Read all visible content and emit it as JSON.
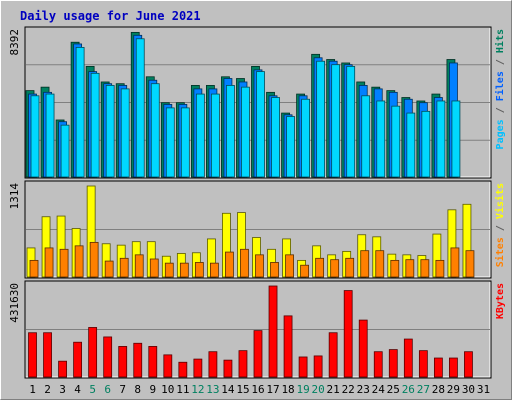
{
  "chart_data": {
    "type": "bar",
    "title": "Daily usage for June 2021",
    "x": [
      1,
      2,
      3,
      4,
      5,
      6,
      7,
      8,
      9,
      10,
      11,
      12,
      13,
      14,
      15,
      16,
      17,
      18,
      19,
      20,
      21,
      22,
      23,
      24,
      25,
      26,
      27,
      28,
      29,
      30,
      31
    ],
    "weekend_days": [
      5,
      6,
      12,
      13,
      19,
      20,
      26,
      27
    ],
    "panels": [
      {
        "id": "pages-files-hits",
        "max_label": "8392",
        "ymax": 8392,
        "right_label_parts": [
          {
            "text": "Pages",
            "color": "#00c0ff"
          },
          {
            "text": " / ",
            "color": "#606060"
          },
          {
            "text": "Files",
            "color": "#0060ff"
          },
          {
            "text": " / ",
            "color": "#606060"
          },
          {
            "text": "Hits",
            "color": "#008060"
          }
        ],
        "series": [
          {
            "name": "Hits",
            "color": "#008060",
            "values": [
              5000,
              5200,
              3300,
              7800,
              6400,
              5500,
              5400,
              8370,
              5800,
              4300,
              4300,
              5300,
              5300,
              5800,
              5700,
              6400,
              4900,
              3700,
              4800,
              7100,
              6800,
              6600,
              5500,
              5200,
              5000,
              4600,
              4400,
              4800,
              6800,
              0,
              0
            ]
          },
          {
            "name": "Files",
            "color": "#0080ff",
            "values": [
              4800,
              4900,
              3200,
              7700,
              6100,
              5400,
              5300,
              8200,
              5600,
              4200,
              4200,
              5100,
              5100,
              5700,
              5500,
              6200,
              4700,
              3600,
              4700,
              6900,
              6700,
              6500,
              5300,
              5100,
              4900,
              4500,
              4300,
              4600,
              6600,
              0,
              0
            ]
          },
          {
            "name": "Pages",
            "color": "#00d8ff",
            "values": [
              4700,
              4800,
              3000,
              7500,
              6000,
              5300,
              5100,
              8000,
              5400,
              4000,
              4000,
              4800,
              4800,
              5300,
              5200,
              6100,
              4600,
              3500,
              4500,
              6700,
              6500,
              6400,
              4700,
              4400,
              4100,
              3700,
              3800,
              4400,
              4400,
              0,
              0
            ]
          }
        ]
      },
      {
        "id": "sites-visits",
        "max_label": "1314",
        "ymax": 1314,
        "right_label_parts": [
          {
            "text": "Sites",
            "color": "#ff8000"
          },
          {
            "text": " / ",
            "color": "#606060"
          },
          {
            "text": "Visits",
            "color": "#ffff00"
          }
        ],
        "series": [
          {
            "name": "Visits",
            "color": "#ffff00",
            "values": [
              420,
              870,
              880,
              700,
              1314,
              480,
              460,
              510,
              510,
              300,
              340,
              350,
              550,
              920,
              930,
              570,
              400,
              550,
              240,
              450,
              320,
              370,
              610,
              580,
              330,
              320,
              310,
              620,
              970,
              1050,
              0
            ]
          },
          {
            "name": "Sites",
            "color": "#ff8000",
            "values": [
              240,
              420,
              400,
              450,
              500,
              230,
              270,
              320,
              260,
              200,
              200,
              210,
              200,
              360,
              400,
              320,
              210,
              320,
              170,
              270,
              250,
              270,
              380,
              380,
              240,
              250,
              250,
              240,
              420,
              380,
              0
            ]
          }
        ]
      },
      {
        "id": "kbytes",
        "max_label": "431630",
        "ymax": 431630,
        "right_label_parts": [
          {
            "text": "KBytes",
            "color": "#ff0000"
          }
        ],
        "series": [
          {
            "name": "KBytes",
            "color": "#ff0000",
            "values": [
              210000,
              210000,
              75000,
              165000,
              235000,
              190000,
              145000,
              160000,
              145000,
              105000,
              70000,
              85000,
              120000,
              80000,
              125000,
              220000,
              431630,
              290000,
              95000,
              100000,
              210000,
              410000,
              270000,
              120000,
              130000,
              180000,
              125000,
              90000,
              90000,
              120000,
              0
            ]
          }
        ]
      }
    ]
  }
}
